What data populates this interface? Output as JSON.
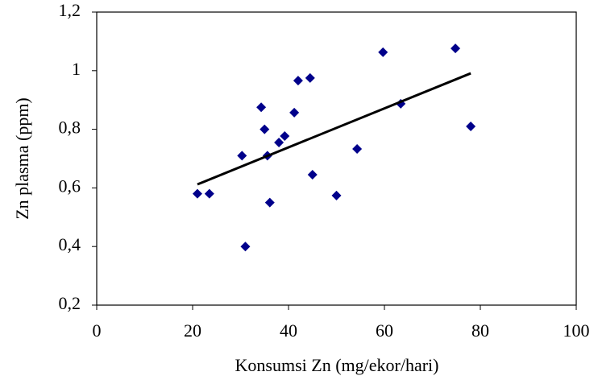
{
  "chart_data": {
    "type": "scatter",
    "xlabel": "Konsumsi Zn (mg/ekor/hari)",
    "ylabel": "Zn plasma (ppm)",
    "x": [
      21,
      23.5,
      30.3,
      31,
      34.3,
      35,
      35.6,
      36.1,
      38,
      39.2,
      41.2,
      42,
      44.5,
      45,
      50,
      54.3,
      59.7,
      63.4,
      74.8,
      78
    ],
    "y": [
      0.58,
      0.58,
      0.71,
      0.4,
      0.875,
      0.8,
      0.71,
      0.55,
      0.755,
      0.777,
      0.857,
      0.966,
      0.975,
      0.645,
      0.574,
      0.733,
      1.063,
      0.887,
      1.076,
      0.81
    ],
    "color": "#00008b",
    "trendline": {
      "x": [
        21,
        78
      ],
      "y": [
        0.612,
        0.991
      ],
      "color": "#000000"
    },
    "xlim": [
      0,
      100
    ],
    "xticks": [
      0,
      20,
      40,
      60,
      80,
      100
    ],
    "ylim": [
      0.2,
      1.2
    ],
    "yticks": [
      {
        "value": 0.2,
        "label": "0,2"
      },
      {
        "value": 0.4,
        "label": "0,4"
      },
      {
        "value": 0.6,
        "label": "0,6"
      },
      {
        "value": 0.8,
        "label": "0,8"
      },
      {
        "value": 1,
        "label": "1"
      },
      {
        "value": 1.2,
        "label": "1,2"
      }
    ],
    "grid": false
  }
}
